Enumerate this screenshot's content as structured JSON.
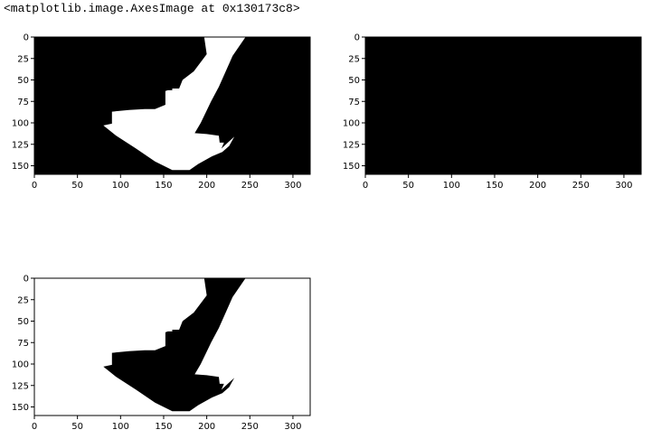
{
  "output": {
    "repr_text": "<matplotlib.image.AxesImage at 0x130173c8>"
  },
  "colors": {
    "ink": "#000000",
    "paper": "#ffffff"
  },
  "chart_data": [
    {
      "type": "heatmap",
      "panel": "top-left",
      "image_shape": [
        160,
        320
      ],
      "xlim": [
        0,
        320
      ],
      "ylim": [
        160,
        0
      ],
      "xticks": [
        0,
        50,
        100,
        150,
        200,
        250,
        300
      ],
      "yticks": [
        0,
        25,
        50,
        75,
        100,
        125,
        150
      ],
      "background": "black",
      "foreground": "white",
      "description_values": {
        "mask_polygon": [
          [
            197,
            0
          ],
          [
            245,
            0
          ],
          [
            230,
            22
          ],
          [
            214,
            58
          ],
          [
            205,
            75
          ],
          [
            193,
            100
          ],
          [
            186,
            112
          ],
          [
            200,
            113
          ],
          [
            214,
            115
          ],
          [
            215,
            123
          ],
          [
            220,
            123
          ],
          [
            217,
            130
          ],
          [
            232,
            116
          ],
          [
            226,
            127
          ],
          [
            218,
            134
          ],
          [
            206,
            139
          ],
          [
            190,
            148
          ],
          [
            180,
            155
          ],
          [
            160,
            155
          ],
          [
            140,
            145
          ],
          [
            118,
            130
          ],
          [
            95,
            115
          ],
          [
            80,
            103
          ],
          [
            90,
            101
          ],
          [
            90,
            87
          ],
          [
            110,
            85
          ],
          [
            128,
            84
          ],
          [
            140,
            84
          ],
          [
            152,
            79
          ],
          [
            152,
            63
          ],
          [
            155,
            62
          ],
          [
            160,
            62
          ],
          [
            160,
            60
          ],
          [
            168,
            60
          ],
          [
            172,
            50
          ],
          [
            185,
            40
          ],
          [
            200,
            20
          ]
        ]
      }
    },
    {
      "type": "heatmap",
      "panel": "top-right",
      "image_shape": [
        160,
        320
      ],
      "xlim": [
        0,
        320
      ],
      "ylim": [
        160,
        0
      ],
      "xticks": [
        0,
        50,
        100,
        150,
        200,
        250,
        300
      ],
      "yticks": [
        0,
        25,
        50,
        75,
        100,
        125,
        150
      ],
      "background": "black",
      "foreground": "black"
    },
    {
      "type": "heatmap",
      "panel": "bottom-left",
      "image_shape": [
        160,
        320
      ],
      "xlim": [
        0,
        320
      ],
      "ylim": [
        160,
        0
      ],
      "xticks": [
        0,
        50,
        100,
        150,
        200,
        250,
        300
      ],
      "yticks": [
        0,
        25,
        50,
        75,
        100,
        125,
        150
      ],
      "background": "white",
      "foreground": "black"
    }
  ]
}
